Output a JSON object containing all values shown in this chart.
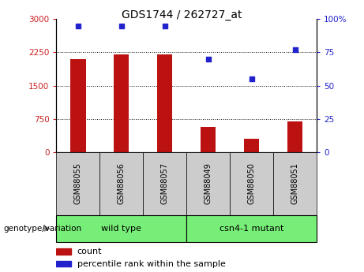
{
  "title": "GDS1744 / 262727_at",
  "categories": [
    "GSM88055",
    "GSM88056",
    "GSM88057",
    "GSM88049",
    "GSM88050",
    "GSM88051"
  ],
  "counts": [
    2100,
    2200,
    2210,
    570,
    300,
    700
  ],
  "percentile_ranks": [
    95,
    95,
    95,
    70,
    55,
    77
  ],
  "group1_label": "wild type",
  "group2_label": "csn4-1 mutant",
  "bar_color": "#bb1111",
  "dot_color": "#2222cc",
  "group_bg": "#77ee77",
  "tick_bg": "#cccccc",
  "ylim_left": [
    0,
    3000
  ],
  "ylim_right": [
    0,
    100
  ],
  "left_ticks": [
    0,
    750,
    1500,
    2250,
    3000
  ],
  "right_ticks": [
    0,
    25,
    50,
    75,
    100
  ],
  "left_tick_labels": [
    "0",
    "750",
    "1500",
    "2250",
    "3000"
  ],
  "right_tick_labels": [
    "0",
    "25",
    "50",
    "75",
    "100%"
  ],
  "left_tick_color": "#cc2222",
  "right_tick_color": "#2222cc",
  "legend_count_label": "count",
  "legend_pct_label": "percentile rank within the sample",
  "genotype_label": "genotype/variation",
  "grid_lines": [
    750,
    1500,
    2250
  ]
}
